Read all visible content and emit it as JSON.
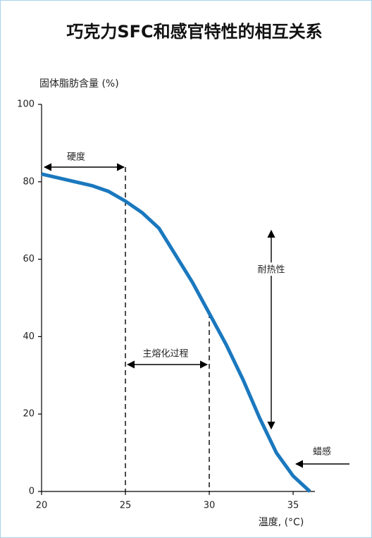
{
  "chart_data": {
    "type": "line",
    "title": "巧克力SFC和感官特性的相互关系",
    "y_label": "固体脂肪含量 (%)",
    "x_label": "温度, (°C)",
    "x": [
      20,
      21,
      22,
      23,
      24,
      25,
      26,
      27,
      28,
      29,
      30,
      31,
      32,
      33,
      34,
      35,
      36
    ],
    "values": [
      82,
      81,
      80,
      79,
      77.5,
      75,
      72,
      68,
      61,
      54,
      46,
      38,
      29,
      19,
      10,
      4,
      0
    ],
    "color": "#1a78be",
    "xlim": [
      20,
      36.3
    ],
    "ylim": [
      0,
      100
    ],
    "xticks": [
      20,
      25,
      30,
      35
    ],
    "yticks": [
      0,
      20,
      40,
      60,
      80,
      100
    ],
    "annotations": [
      "硬度",
      "主熔化过程",
      "耐热性",
      "蜡感"
    ]
  }
}
